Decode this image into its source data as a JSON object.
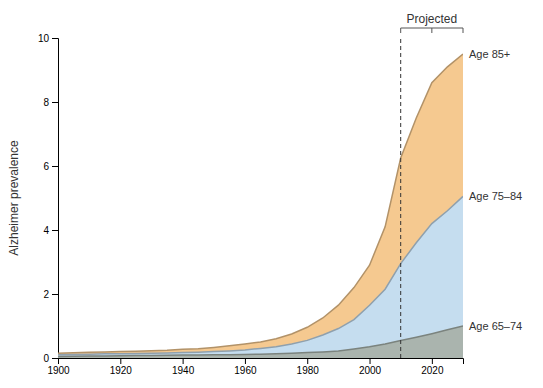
{
  "chart_data": {
    "type": "area",
    "y_label": "Alzheimer prevalence",
    "x": [
      1900,
      1905,
      1910,
      1915,
      1920,
      1925,
      1930,
      1935,
      1940,
      1945,
      1950,
      1955,
      1960,
      1965,
      1970,
      1975,
      1980,
      1985,
      1990,
      1995,
      2000,
      2005,
      2010,
      2015,
      2020,
      2025,
      2030
    ],
    "series": [
      {
        "name": "Age 65–74",
        "color": "#aab4ae",
        "values": [
          0.05,
          0.055,
          0.06,
          0.065,
          0.07,
          0.075,
          0.08,
          0.085,
          0.09,
          0.095,
          0.1,
          0.105,
          0.11,
          0.12,
          0.13,
          0.15,
          0.17,
          0.19,
          0.22,
          0.28,
          0.35,
          0.44,
          0.55,
          0.65,
          0.76,
          0.88,
          1.0
        ]
      },
      {
        "name": "Age 75–84",
        "color": "#c5ddef",
        "values": [
          0.1,
          0.11,
          0.12,
          0.13,
          0.135,
          0.14,
          0.15,
          0.155,
          0.17,
          0.18,
          0.2,
          0.22,
          0.25,
          0.3,
          0.35,
          0.44,
          0.55,
          0.72,
          0.92,
          1.2,
          1.65,
          2.15,
          2.95,
          3.6,
          4.2,
          4.6,
          5.05
        ]
      },
      {
        "name": "Age 85+",
        "color": "#f5c990",
        "values": [
          0.15,
          0.165,
          0.18,
          0.19,
          0.2,
          0.21,
          0.225,
          0.24,
          0.27,
          0.29,
          0.33,
          0.38,
          0.44,
          0.5,
          0.6,
          0.75,
          0.96,
          1.25,
          1.65,
          2.2,
          2.9,
          4.1,
          6.25,
          7.5,
          8.6,
          9.1,
          9.5
        ]
      }
    ],
    "annotations": [
      {
        "text": "Projected",
        "x": 2010
      }
    ],
    "xlim": [
      1900,
      2030
    ],
    "xticks": [
      1900,
      1920,
      1940,
      1960,
      1980,
      2000,
      2020
    ],
    "ylim": [
      0,
      10
    ],
    "yticks": [
      0,
      2,
      4,
      6,
      8,
      10
    ],
    "grid": false
  }
}
